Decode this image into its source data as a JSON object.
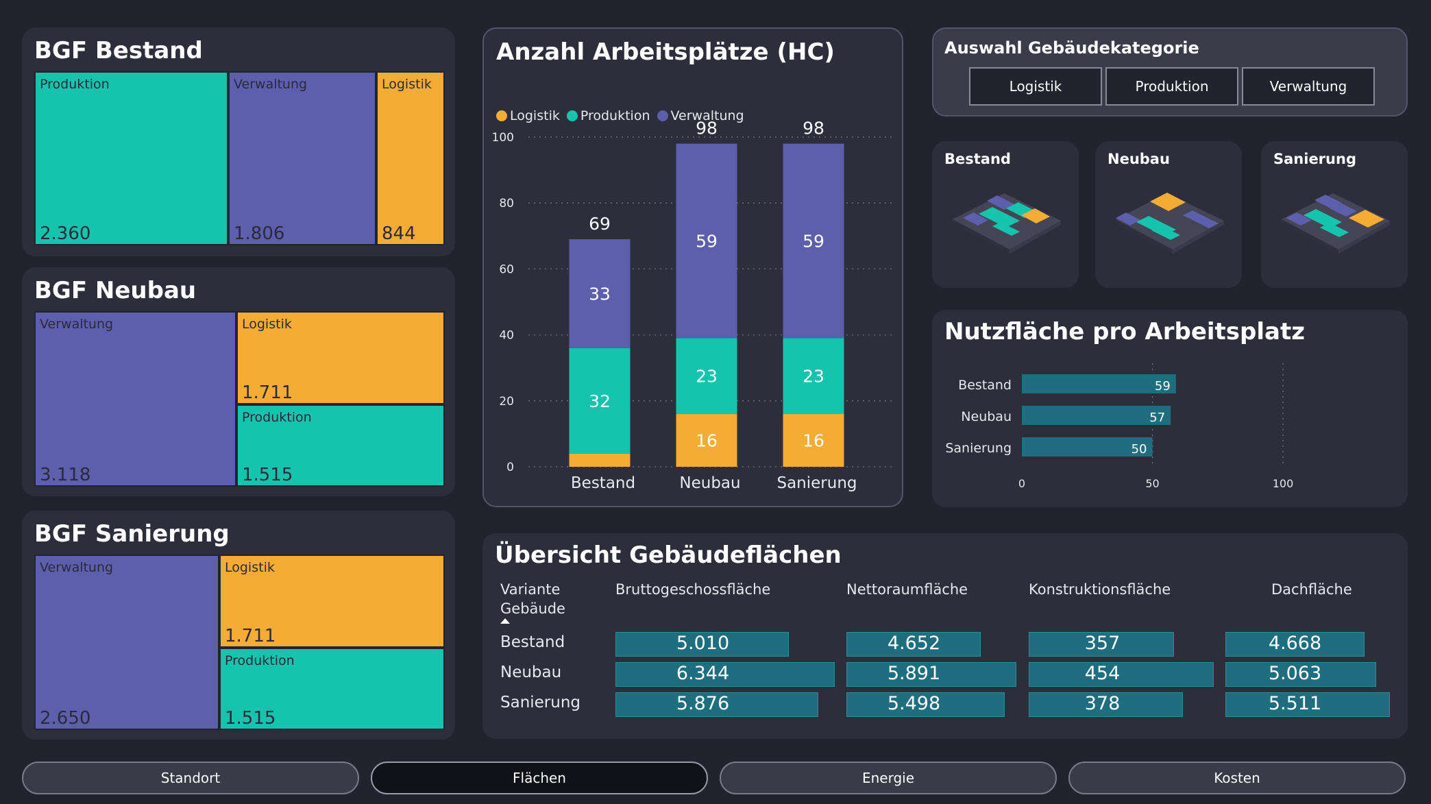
{
  "colors": {
    "logistik": "#f4ac35",
    "produktion": "#16c3ad",
    "verwaltung": "#5d5fad",
    "bar": "#1f6e80"
  },
  "bgf_bestand": {
    "title": "BGF Bestand",
    "cells": [
      {
        "label": "Produktion",
        "value": "2.360"
      },
      {
        "label": "Verwaltung",
        "value": "1.806"
      },
      {
        "label": "Logistik",
        "value": "844"
      }
    ]
  },
  "bgf_neubau": {
    "title": "BGF Neubau",
    "cells": [
      {
        "label": "Verwaltung",
        "value": "3.118"
      },
      {
        "label": "Logistik",
        "value": "1.711"
      },
      {
        "label": "Produktion",
        "value": "1.515"
      }
    ]
  },
  "bgf_sanierung": {
    "title": "BGF Sanierung",
    "cells": [
      {
        "label": "Verwaltung",
        "value": "2.650"
      },
      {
        "label": "Logistik",
        "value": "1.711"
      },
      {
        "label": "Produktion",
        "value": "1.515"
      }
    ]
  },
  "arbeitsplaetze": {
    "title": "Anzahl Arbeitsplätze (HC)",
    "legend": [
      "Logistik",
      "Produktion",
      "Verwaltung"
    ]
  },
  "chart_data": [
    {
      "type": "bar",
      "stacked": true,
      "title": "Anzahl Arbeitsplätze (HC)",
      "categories": [
        "Bestand",
        "Neubau",
        "Sanierung"
      ],
      "series": [
        {
          "name": "Logistik",
          "values": [
            4,
            16,
            16
          ],
          "labels": [
            "",
            "16",
            "16"
          ]
        },
        {
          "name": "Produktion",
          "values": [
            32,
            23,
            23
          ],
          "labels": [
            "32",
            "23",
            "23"
          ]
        },
        {
          "name": "Verwaltung",
          "values": [
            33,
            59,
            59
          ],
          "labels": [
            "33",
            "59",
            "59"
          ]
        }
      ],
      "totals": [
        "69",
        "98",
        "98"
      ],
      "yticks": [
        "0",
        "20",
        "40",
        "60",
        "80",
        "100"
      ],
      "ylim": [
        0,
        100
      ],
      "legend_position": "top-left",
      "grid": true
    },
    {
      "type": "bar",
      "orientation": "horizontal",
      "title": "Nutzfläche pro Arbeitsplatz",
      "categories": [
        "Bestand",
        "Neubau",
        "Sanierung"
      ],
      "values": [
        59,
        57,
        50
      ],
      "value_labels": [
        "59",
        "57",
        "50"
      ],
      "xticks": [
        "0",
        "50",
        "100"
      ],
      "xlim": [
        0,
        100
      ]
    }
  ],
  "auswahl": {
    "title": "Auswahl Gebäudekategorie",
    "buttons": [
      "Logistik",
      "Produktion",
      "Verwaltung"
    ]
  },
  "mini_cards": [
    {
      "title": "Bestand"
    },
    {
      "title": "Neubau"
    },
    {
      "title": "Sanierung"
    }
  ],
  "uebersicht": {
    "title": "Übersicht Gebäudeflächen",
    "head_variant": "Variante",
    "head_gebaeude": "Gebäude",
    "columns": [
      "Bruttogeschossfläche",
      "Nettoraumfläche",
      "Konstruktionsfläche",
      "Dachfläche"
    ],
    "rows": [
      {
        "label": "Bestand",
        "values": [
          "5.010",
          "4.652",
          "357",
          "4.668"
        ],
        "nums": [
          5010,
          4652,
          357,
          4668
        ]
      },
      {
        "label": "Neubau",
        "values": [
          "6.344",
          "5.891",
          "454",
          "5.063"
        ],
        "nums": [
          6344,
          5891,
          454,
          5063
        ]
      },
      {
        "label": "Sanierung",
        "values": [
          "5.876",
          "5.498",
          "378",
          "5.511"
        ],
        "nums": [
          5876,
          5498,
          378,
          5511
        ]
      }
    ]
  },
  "nav": {
    "items": [
      "Standort",
      "Flächen",
      "Energie",
      "Kosten"
    ],
    "active": "Flächen"
  }
}
